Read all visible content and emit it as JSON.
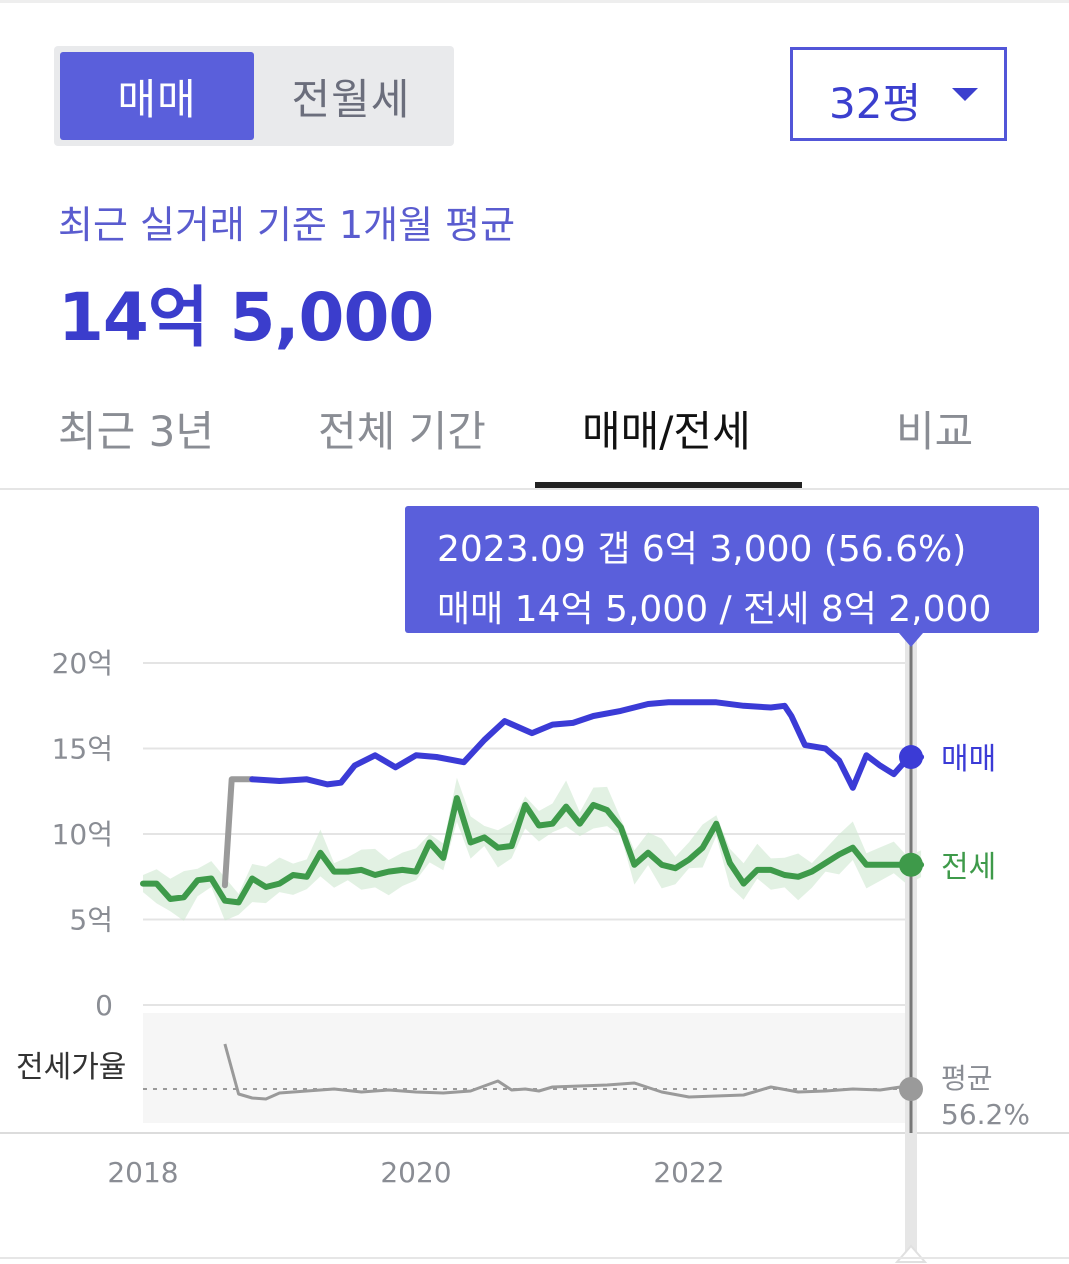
{
  "trade_tabs": [
    {
      "label": "매매",
      "active": true
    },
    {
      "label": "전월세",
      "active": false
    }
  ],
  "size_select": {
    "label": "32평"
  },
  "summary": {
    "caption": "최근 실거래 기준 1개월 평균",
    "price": "14억 5,000"
  },
  "period_tabs": [
    {
      "label": "최근 3년",
      "active": false
    },
    {
      "label": "전체 기간",
      "active": false
    },
    {
      "label": "매매/전세",
      "active": true
    },
    {
      "label": "비교",
      "active": false
    }
  ],
  "tooltip": {
    "line1": "2023.09  갭 6억 3,000 (56.6%)",
    "line2": "매매 14억 5,000 / 전세 8억 2,000"
  },
  "colors": {
    "accent": "#5a5fdb",
    "sale": "#3b3bd6",
    "jeonse": "#3e9a4a",
    "jeonse_band": "#cfe8d1",
    "ratio": "#9a9a9a"
  },
  "chart_data": [
    {
      "type": "line",
      "ylim": [
        0,
        20
      ],
      "xlim": [
        "2018-01",
        "2023-09"
      ],
      "ytick_labels": [
        "20억",
        "15억",
        "10억",
        "5억",
        "0"
      ],
      "yticks": [
        20,
        15,
        10,
        5,
        0
      ],
      "xtick_labels": [
        "2018",
        "2020",
        "2022"
      ],
      "xticks": [
        2018,
        2020,
        2022
      ],
      "grid": true,
      "series": [
        {
          "name": "매매",
          "color": "#3b3bd6",
          "end_value": 14.5,
          "x": [
            2018.6,
            2018.65,
            2018.8,
            2019.0,
            2019.2,
            2019.35,
            2019.45,
            2019.55,
            2019.7,
            2019.85,
            2020.0,
            2020.15,
            2020.35,
            2020.5,
            2020.65,
            2020.85,
            2021.0,
            2021.15,
            2021.3,
            2021.5,
            2021.7,
            2021.85,
            2022.0,
            2022.2,
            2022.4,
            2022.6,
            2022.7,
            2022.75,
            2022.85,
            2023.0,
            2023.1,
            2023.2,
            2023.3,
            2023.4,
            2023.5,
            2023.6,
            2023.7
          ],
          "values": [
            7.0,
            13.2,
            13.2,
            13.1,
            13.2,
            12.9,
            13.0,
            14.0,
            14.6,
            13.9,
            14.6,
            14.5,
            14.2,
            15.5,
            16.6,
            15.9,
            16.4,
            16.5,
            16.9,
            17.2,
            17.6,
            17.7,
            17.7,
            17.7,
            17.5,
            17.4,
            17.5,
            16.9,
            15.2,
            15.0,
            14.3,
            12.7,
            14.6,
            14.0,
            13.5,
            14.4,
            14.5
          ]
        },
        {
          "name": "전세",
          "color": "#3e9a4a",
          "end_value": 8.2,
          "x": [
            2018.0,
            2018.1,
            2018.2,
            2018.3,
            2018.4,
            2018.5,
            2018.6,
            2018.7,
            2018.8,
            2018.9,
            2019.0,
            2019.1,
            2019.2,
            2019.3,
            2019.4,
            2019.5,
            2019.6,
            2019.7,
            2019.8,
            2019.9,
            2020.0,
            2020.1,
            2020.2,
            2020.3,
            2020.4,
            2020.5,
            2020.6,
            2020.7,
            2020.8,
            2020.9,
            2021.0,
            2021.1,
            2021.2,
            2021.3,
            2021.4,
            2021.5,
            2021.6,
            2021.7,
            2021.8,
            2021.9,
            2022.0,
            2022.1,
            2022.2,
            2022.3,
            2022.4,
            2022.5,
            2022.6,
            2022.7,
            2022.8,
            2022.9,
            2023.0,
            2023.1,
            2023.2,
            2023.3,
            2023.4,
            2023.5,
            2023.6,
            2023.7
          ],
          "values": [
            7.1,
            7.1,
            6.2,
            6.3,
            7.3,
            7.4,
            6.1,
            6.0,
            7.4,
            6.9,
            7.1,
            7.6,
            7.5,
            8.9,
            7.8,
            7.8,
            7.9,
            7.6,
            7.8,
            7.9,
            7.8,
            9.5,
            8.6,
            12.1,
            9.5,
            9.8,
            9.2,
            9.3,
            11.7,
            10.5,
            10.6,
            11.6,
            10.6,
            11.7,
            11.4,
            10.4,
            8.2,
            8.9,
            8.2,
            8.0,
            8.5,
            9.2,
            10.6,
            8.3,
            7.1,
            7.9,
            7.9,
            7.6,
            7.5,
            7.8,
            8.3,
            8.8,
            9.2,
            8.2,
            8.2,
            8.2,
            8.2,
            8.2
          ]
        },
        {
          "name": "",
          "color": "#9a9a9a",
          "x": [
            2018.6,
            2018.65,
            2018.8
          ],
          "values": [
            7.0,
            13.2,
            13.2
          ]
        }
      ],
      "end_labels": [
        "매매",
        "전세"
      ]
    },
    {
      "type": "line",
      "ylabel": "전세가율",
      "average_label": "평균",
      "average_value": "56.2%",
      "series": [
        {
          "name": "전세가율",
          "color": "#9a9a9a",
          "x": [
            2018.6,
            2018.7,
            2018.8,
            2018.9,
            2019.0,
            2019.2,
            2019.4,
            2019.6,
            2019.8,
            2020.0,
            2020.2,
            2020.4,
            2020.6,
            2020.7,
            2020.8,
            2020.9,
            2021.0,
            2021.2,
            2021.4,
            2021.6,
            2021.8,
            2022.0,
            2022.2,
            2022.4,
            2022.6,
            2022.8,
            2023.0,
            2023.2,
            2023.4,
            2023.6,
            2023.7
          ],
          "values": [
            100,
            50,
            46,
            45,
            51,
            53,
            55,
            52,
            54,
            52,
            51,
            53,
            63,
            54,
            55,
            53,
            57,
            58,
            59,
            61,
            52,
            47,
            48,
            49,
            57,
            52,
            53,
            55,
            54,
            58,
            56.6
          ]
        }
      ]
    }
  ]
}
